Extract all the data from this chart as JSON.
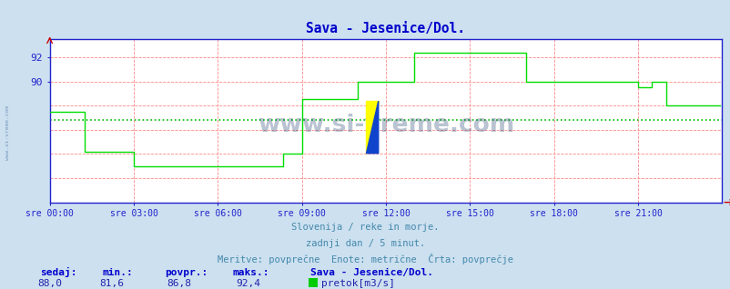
{
  "title": "Sava - Jesenice/Dol.",
  "bg_color": "#cce0f0",
  "plot_bg_color": "#ffffff",
  "line_color": "#00dd00",
  "avg_line_color": "#00bb00",
  "avg_value": 86.8,
  "grid_red": "#ff8888",
  "axis_color": "#2222cc",
  "tick_color": "#2222aa",
  "title_color": "#0000cc",
  "subtitle_color": "#4488aa",
  "info_lines": [
    "Slovenija / reke in morje.",
    "zadnji dan / 5 minut.",
    "Meritve: povprečne  Enote: metrične  Črta: povprečje"
  ],
  "bottom_labels": [
    "sedaj:",
    "min.:",
    "povpr.:",
    "maks.:"
  ],
  "bottom_values": [
    "88,0",
    "81,6",
    "86,8",
    "92,4"
  ],
  "station_label": "Sava - Jesenice/Dol.",
  "legend_label": "pretok[m3/s]",
  "legend_color": "#00cc00",
  "ylim": [
    80.0,
    93.5
  ],
  "xlabel_times": [
    "sre 00:00",
    "sre 03:00",
    "sre 06:00",
    "sre 09:00",
    "sre 12:00",
    "sre 15:00",
    "sre 18:00",
    "sre 21:00"
  ],
  "num_points": 288,
  "watermark": "www.si-vreme.com",
  "watermark_color": "#1a3a6a",
  "left_watermark": "www.si-vreme.com"
}
